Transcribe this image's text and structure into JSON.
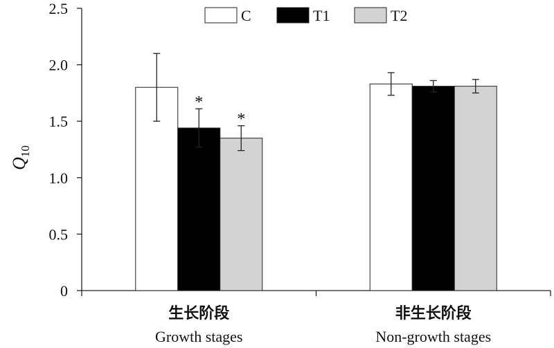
{
  "chart_data": {
    "type": "bar",
    "title": "",
    "ylabel": "Q",
    "ylabel_sub": "10",
    "ylim": [
      0,
      2.5
    ],
    "yticks": [
      "0",
      "0.5",
      "1.0",
      "1.5",
      "2.0",
      "2.5"
    ],
    "ytick_values": [
      0,
      0.5,
      1.0,
      1.5,
      2.0,
      2.5
    ],
    "categories": [
      "生长阶段",
      "非生长阶段"
    ],
    "categories_en": [
      "Growth stages",
      "Non-growth stages"
    ],
    "legend_position": "top-center",
    "series": [
      {
        "name": "C",
        "color": "#ffffff",
        "values": [
          1.8,
          1.83
        ],
        "errors": [
          0.3,
          0.1
        ],
        "marks": [
          "",
          ""
        ]
      },
      {
        "name": "T1",
        "color": "#000000",
        "values": [
          1.44,
          1.81
        ],
        "errors": [
          0.17,
          0.05
        ],
        "marks": [
          "*",
          ""
        ]
      },
      {
        "name": "T2",
        "color": "#d3d3d3",
        "values": [
          1.35,
          1.81
        ],
        "errors": [
          0.11,
          0.06
        ],
        "marks": [
          "*",
          ""
        ]
      }
    ]
  }
}
